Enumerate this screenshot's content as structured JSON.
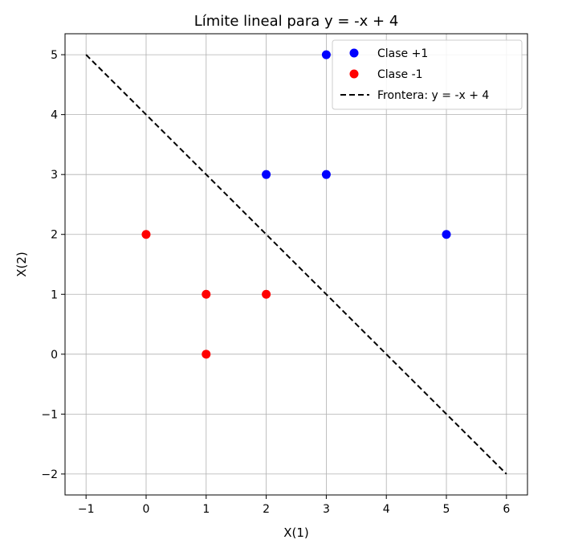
{
  "chart_data": {
    "type": "scatter",
    "title": "Límite lineal para y = -x + 4",
    "xlabel": "X(1)",
    "ylabel": "X(2)",
    "xlim": [
      -1.35,
      6.35
    ],
    "ylim": [
      -2.35,
      5.35
    ],
    "xticks": [
      -1,
      0,
      1,
      2,
      3,
      4,
      5,
      6
    ],
    "yticks": [
      -2,
      -1,
      0,
      1,
      2,
      3,
      4,
      5
    ],
    "xtick_labels": [
      "−1",
      "0",
      "1",
      "2",
      "3",
      "4",
      "5",
      "6"
    ],
    "ytick_labels": [
      "−2",
      "−1",
      "0",
      "1",
      "2",
      "3",
      "4",
      "5"
    ],
    "grid": true,
    "legend_position": "top-right",
    "series": [
      {
        "name": "Clase +1",
        "kind": "scatter",
        "color": "#0000ff",
        "points": [
          [
            2,
            3
          ],
          [
            3,
            3
          ],
          [
            3,
            5
          ],
          [
            5,
            2
          ]
        ]
      },
      {
        "name": "Clase -1",
        "kind": "scatter",
        "color": "#ff0000",
        "points": [
          [
            0,
            2
          ],
          [
            1,
            1
          ],
          [
            2,
            1
          ],
          [
            1,
            0
          ]
        ]
      },
      {
        "name": "Frontera: y = -x + 4",
        "kind": "line",
        "style": "dashed",
        "color": "#000000",
        "points": [
          [
            -1,
            5
          ],
          [
            6,
            -2
          ]
        ]
      }
    ]
  }
}
